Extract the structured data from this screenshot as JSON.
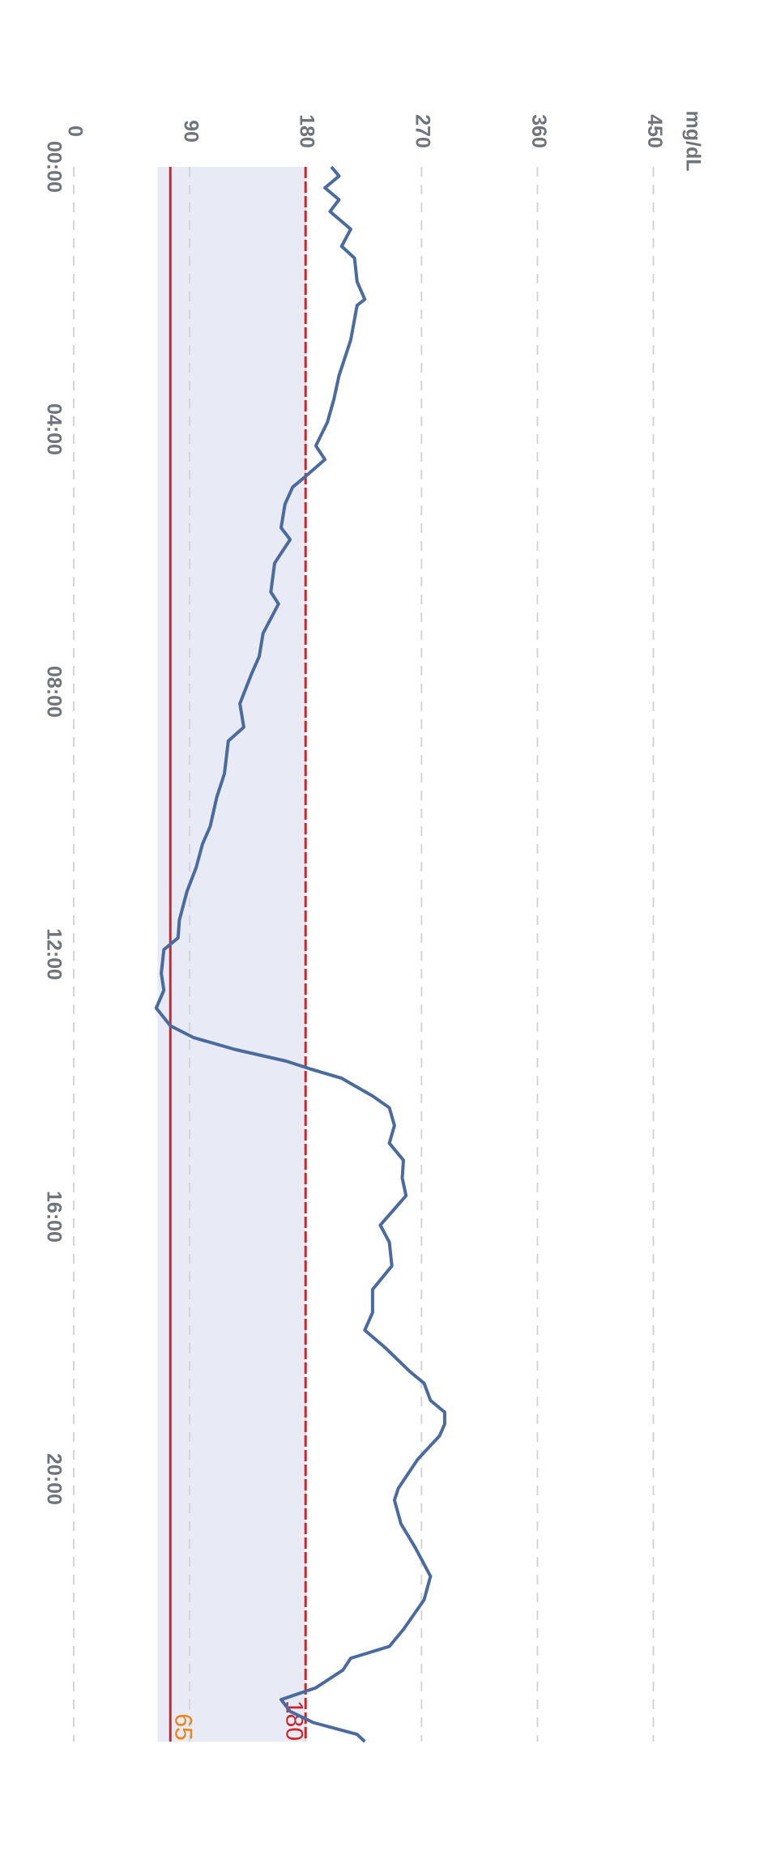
{
  "chart_data": {
    "type": "line",
    "unit_label": "mg/dL",
    "xlim": [
      0,
      24
    ],
    "xticks": [
      {
        "value": 0,
        "label": "00:00"
      },
      {
        "value": 4,
        "label": "04:00"
      },
      {
        "value": 8,
        "label": "08:00"
      },
      {
        "value": 12,
        "label": "12:00"
      },
      {
        "value": 16,
        "label": "16:00"
      },
      {
        "value": 20,
        "label": "20:00"
      }
    ],
    "ylim": [
      0,
      480
    ],
    "yticks": [
      0,
      90,
      180,
      270,
      360,
      450
    ],
    "grid": true,
    "target_range": [
      65,
      180
    ],
    "target_color": "#e8ebf6",
    "low_line": 75,
    "low_color": "#c8262a",
    "low_label_color": "#e8841a",
    "high_color": "#c8262a",
    "series": [
      {
        "color": "#4a6b9b",
        "x": [
          0,
          0.14,
          0.32,
          0.5,
          0.68,
          0.95,
          1.21,
          1.39,
          1.75,
          2.02,
          2.11,
          2.64,
          3.18,
          3.54,
          3.89,
          4.25,
          4.46,
          4.7,
          4.88,
          5.14,
          5.5,
          5.68,
          6.04,
          6.48,
          6.66,
          7.11,
          7.46,
          7.73,
          8.18,
          8.54,
          8.75,
          9.25,
          9.61,
          10.05,
          10.32,
          10.68,
          11.04,
          11.48,
          11.75,
          11.93,
          12.29,
          12.55,
          12.82,
          13.09,
          13.27,
          13.45,
          13.63,
          13.75,
          13.89,
          14.16,
          14.34,
          14.61,
          14.88,
          15.14,
          15.41,
          15.68,
          16.13,
          16.39,
          16.75,
          17.11,
          17.46,
          17.73,
          18,
          18.36,
          18.54,
          18.8,
          18.98,
          19.16,
          19.34,
          19.7,
          20.14,
          20.32,
          20.68,
          21.04,
          21.48,
          21.84,
          22.29,
          22.55,
          22.73,
          22.91,
          23.18,
          23.36,
          23.54,
          23.71,
          23.89,
          24
        ],
        "values": [
          200,
          206,
          195,
          206,
          199,
          215,
          208,
          218,
          220,
          226,
          220,
          215,
          206,
          202,
          197,
          188,
          195,
          181,
          170,
          164,
          161,
          168,
          156,
          153,
          159,
          147,
          144,
          138,
          129,
          132,
          120,
          117,
          111,
          106,
          100,
          95,
          88,
          82,
          81,
          70,
          68,
          70,
          64,
          75,
          93,
          125,
          165,
          184,
          208,
          232,
          245,
          249,
          245,
          256,
          255,
          258,
          238,
          245,
          247,
          232,
          232,
          226,
          242,
          261,
          272,
          277,
          288,
          288,
          284,
          267,
          252,
          249,
          254,
          265,
          277,
          272,
          256,
          245,
          215,
          209,
          188,
          161,
          168,
          186,
          220,
          226
        ]
      }
    ]
  }
}
